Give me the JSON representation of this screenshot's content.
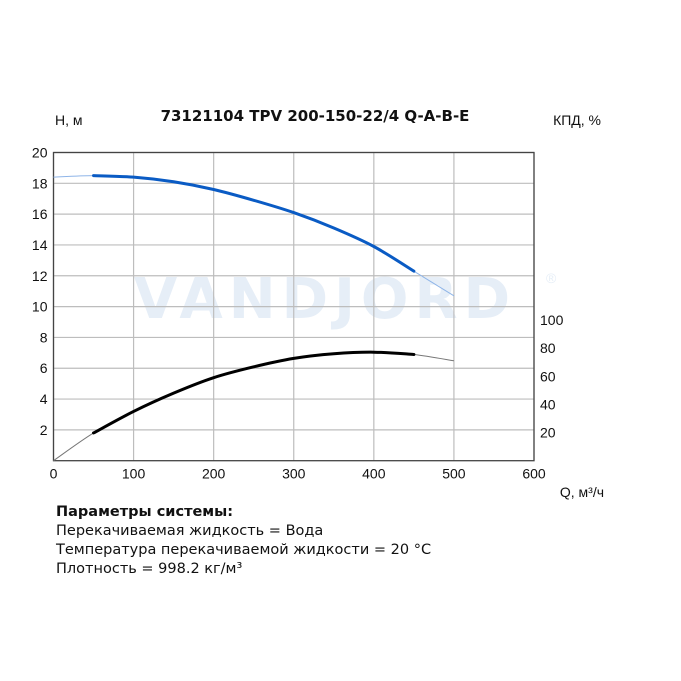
{
  "chart_data": {
    "type": "line",
    "title": "73121104 TPV 200-150-22/4 Q-A-B-E",
    "xlabel": "Q, м³/ч",
    "ylabel": "H, м",
    "y2label": "КПД, %",
    "xlim": [
      0,
      600
    ],
    "ylim": [
      0,
      20
    ],
    "y2lim": [
      0,
      219
    ],
    "xticks": [
      0,
      100,
      200,
      300,
      400,
      500,
      600
    ],
    "yticks": [
      2,
      4,
      6,
      8,
      10,
      12,
      14,
      16,
      18,
      20
    ],
    "y2ticks": [
      20,
      40,
      60,
      80,
      100
    ],
    "grid": true,
    "series": [
      {
        "axis": "left",
        "color": "#0a5bc4",
        "operating_range": [
          50,
          450
        ],
        "x": [
          0,
          50,
          100,
          150,
          200,
          250,
          300,
          350,
          400,
          450,
          500
        ],
        "y": [
          18.4,
          18.5,
          18.4,
          18.1,
          17.6,
          16.9,
          16.1,
          15.1,
          13.9,
          12.3,
          10.7
        ]
      },
      {
        "axis": "right",
        "color": "#000000",
        "operating_range": [
          50,
          450
        ],
        "x": [
          0,
          50,
          100,
          150,
          200,
          250,
          300,
          350,
          400,
          450,
          500
        ],
        "y": [
          0,
          19.7,
          35,
          48,
          59,
          66.7,
          72.7,
          76,
          77.1,
          75.5,
          71
        ]
      }
    ],
    "watermark": "VANDJORD"
  },
  "params": {
    "heading": "Параметры системы:",
    "lines": [
      "Перекачиваемая жидкость = Вода",
      "Температура перекачиваемой жидкости = 20 °C",
      "Плотность = 998.2 кг/м³"
    ]
  }
}
